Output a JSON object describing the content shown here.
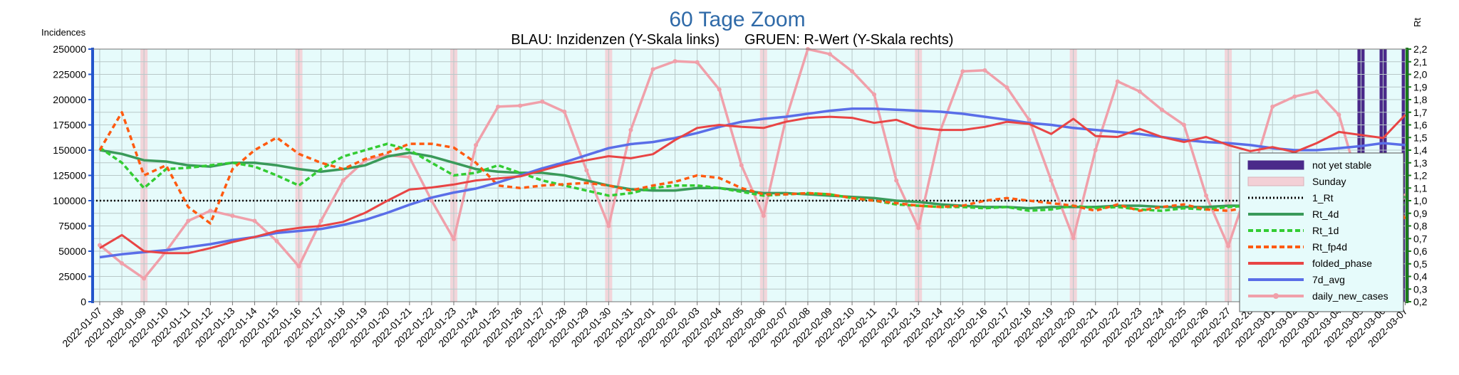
{
  "chart_data": {
    "type": "line",
    "title": "60 Tage Zoom",
    "subtitle_left": "BLAU: Inzidenzen (Y-Skala links)",
    "subtitle_right": "GRUEN: R-Wert (Y-Skala rechts)",
    "ylabel": "Incidences",
    "y2label": "Rt",
    "ylim": [
      0,
      250000
    ],
    "y2lim": [
      0.2,
      2.2
    ],
    "yticks": [
      "0",
      "25000",
      "50000",
      "75000",
      "100000",
      "125000",
      "150000",
      "175000",
      "200000",
      "225000",
      "250000"
    ],
    "y2ticks": [
      "0,2",
      "0,3",
      "0,4",
      "0,5",
      "0,6",
      "0,7",
      "0,8",
      "0,9",
      "1,0",
      "1,1",
      "1,2",
      "1,3",
      "1,4",
      "1,5",
      "1,6",
      "1,7",
      "1,8",
      "1,9",
      "2,0",
      "2,1",
      "2,2"
    ],
    "grid": true,
    "legend_position": "right",
    "x": [
      "2022-01-07",
      "2022-01-08",
      "2022-01-09",
      "2022-01-10",
      "2022-01-11",
      "2022-01-12",
      "2022-01-13",
      "2022-01-14",
      "2022-01-15",
      "2022-01-16",
      "2022-01-17",
      "2022-01-18",
      "2022-01-19",
      "2022-01-20",
      "2022-01-21",
      "2022-01-22",
      "2022-01-23",
      "2022-01-24",
      "2022-01-25",
      "2022-01-26",
      "2022-01-27",
      "2022-01-28",
      "2022-01-29",
      "2022-01-30",
      "2022-01-31",
      "2022-02-01",
      "2022-02-02",
      "2022-02-03",
      "2022-02-04",
      "2022-02-05",
      "2022-02-06",
      "2022-02-07",
      "2022-02-08",
      "2022-02-09",
      "2022-02-10",
      "2022-02-11",
      "2022-02-12",
      "2022-02-13",
      "2022-02-14",
      "2022-02-15",
      "2022-02-16",
      "2022-02-17",
      "2022-02-18",
      "2022-02-19",
      "2022-02-20",
      "2022-02-21",
      "2022-02-22",
      "2022-02-23",
      "2022-02-24",
      "2022-02-25",
      "2022-02-26",
      "2022-02-27",
      "2022-02-28",
      "2022-03-01",
      "2022-03-02",
      "2022-03-03",
      "2022-03-04",
      "2022-03-05",
      "2022-03-06",
      "2022-03-07"
    ],
    "sundays": [
      "2022-01-09",
      "2022-01-16",
      "2022-01-23",
      "2022-01-30",
      "2022-02-06",
      "2022-02-13",
      "2022-02-20",
      "2022-02-27",
      "2022-03-06"
    ],
    "not_yet_stable": [
      "2022-03-05",
      "2022-03-06",
      "2022-03-07"
    ],
    "reference_line": {
      "name": "1_Rt",
      "value": 1.0
    },
    "series": [
      {
        "name": "daily_new_cases",
        "axis": "left",
        "color": "#f0a0aa",
        "values": [
          56000,
          38000,
          23000,
          50000,
          80000,
          90000,
          85000,
          80000,
          60000,
          35000,
          80000,
          120000,
          140000,
          145000,
          143000,
          100000,
          62000,
          155000,
          193000,
          194000,
          198000,
          188000,
          130000,
          75000,
          170000,
          230000,
          238000,
          237000,
          210000,
          135000,
          85000,
          180000,
          250000,
          245000,
          228000,
          205000,
          120000,
          73000,
          170000,
          228000,
          229000,
          212000,
          180000,
          120000,
          63000,
          150000,
          218000,
          208000,
          190000,
          175000,
          105000,
          55000,
          120000,
          193000,
          203000,
          208000,
          185000,
          110000,
          72000,
          105000
        ]
      },
      {
        "name": "7d_avg",
        "axis": "left",
        "color": "#5a6ee8",
        "values": [
          44000,
          47000,
          49000,
          51000,
          54000,
          57000,
          61000,
          64000,
          68000,
          70000,
          72000,
          76000,
          81000,
          88000,
          96000,
          103000,
          108000,
          112000,
          118000,
          125000,
          132000,
          138000,
          145000,
          152000,
          156000,
          158000,
          162000,
          167000,
          173000,
          178000,
          181000,
          183000,
          186000,
          189000,
          191000,
          191000,
          190000,
          189000,
          188000,
          186000,
          183000,
          180000,
          177000,
          175000,
          172000,
          170000,
          168000,
          166000,
          163000,
          160000,
          158000,
          157000,
          155000,
          152000,
          150000,
          150000,
          152000,
          154000,
          157000,
          155000
        ]
      },
      {
        "name": "folded_phase",
        "axis": "left",
        "color": "#e84545",
        "values": [
          53000,
          66000,
          50000,
          48000,
          48000,
          53000,
          59000,
          64000,
          70000,
          73000,
          75000,
          79000,
          88000,
          100000,
          111000,
          113000,
          116000,
          120000,
          122000,
          124000,
          130000,
          136000,
          140000,
          144000,
          142000,
          146000,
          160000,
          172000,
          175000,
          173000,
          172000,
          178000,
          182000,
          183000,
          182000,
          177000,
          180000,
          172000,
          170000,
          170000,
          173000,
          178000,
          176000,
          166000,
          181000,
          164000,
          163000,
          171000,
          163000,
          158000,
          163000,
          155000,
          149000,
          153000,
          148000,
          157000,
          168000,
          165000,
          162000,
          185000
        ]
      },
      {
        "name": "Rt_4d",
        "axis": "right",
        "color": "#3a9a5a",
        "values": [
          1.4,
          1.37,
          1.32,
          1.31,
          1.28,
          1.27,
          1.3,
          1.3,
          1.28,
          1.25,
          1.23,
          1.25,
          1.28,
          1.35,
          1.38,
          1.35,
          1.3,
          1.25,
          1.23,
          1.22,
          1.22,
          1.2,
          1.16,
          1.12,
          1.09,
          1.08,
          1.08,
          1.1,
          1.1,
          1.08,
          1.06,
          1.06,
          1.05,
          1.04,
          1.03,
          1.02,
          1.0,
          0.99,
          0.97,
          0.96,
          0.95,
          0.95,
          0.94,
          0.95,
          0.95,
          0.95,
          0.96,
          0.96,
          0.95,
          0.95,
          0.95,
          0.96,
          0.96,
          0.94,
          0.94,
          0.95,
          0.97,
          0.99,
          1.01,
          1.03
        ]
      },
      {
        "name": "Rt_1d",
        "axis": "right",
        "color": "#33cc33",
        "values": [
          1.42,
          1.3,
          1.1,
          1.25,
          1.26,
          1.28,
          1.3,
          1.27,
          1.2,
          1.12,
          1.25,
          1.35,
          1.4,
          1.45,
          1.4,
          1.3,
          1.2,
          1.22,
          1.28,
          1.22,
          1.16,
          1.12,
          1.08,
          1.04,
          1.06,
          1.1,
          1.12,
          1.12,
          1.1,
          1.07,
          1.04,
          1.05,
          1.06,
          1.05,
          1.02,
          1.0,
          0.97,
          0.96,
          0.95,
          0.95,
          0.94,
          0.95,
          0.92,
          0.93,
          0.96,
          0.94,
          0.95,
          0.93,
          0.92,
          0.94,
          0.93,
          0.95,
          0.96,
          0.92,
          0.95,
          1.07,
          1.05,
          1.02,
          1.04,
          0.96
        ]
      },
      {
        "name": "Rt_fp4d",
        "axis": "right",
        "color": "#ff5a10",
        "values": [
          1.4,
          1.7,
          1.2,
          1.28,
          0.95,
          0.82,
          1.25,
          1.4,
          1.5,
          1.37,
          1.3,
          1.25,
          1.33,
          1.38,
          1.45,
          1.45,
          1.42,
          1.3,
          1.12,
          1.1,
          1.12,
          1.13,
          1.14,
          1.12,
          1.08,
          1.12,
          1.15,
          1.2,
          1.18,
          1.1,
          1.05,
          1.05,
          1.06,
          1.05,
          1.02,
          1.0,
          0.98,
          0.96,
          0.95,
          0.96,
          1.0,
          1.02,
          1.0,
          0.98,
          0.96,
          0.92,
          0.97,
          0.92,
          0.95,
          0.97,
          0.93,
          0.92,
          0.95,
          0.92,
          0.96,
          1.1,
          1.08,
          1.07,
          1.18,
          0.85
        ]
      }
    ]
  },
  "legend": [
    {
      "name": "not yet stable",
      "type": "box",
      "color": "#4a2a8a"
    },
    {
      "name": "Sunday",
      "type": "box",
      "color": "#f3d0d6"
    },
    {
      "name": "1_Rt",
      "type": "dotted",
      "color": "#000000"
    },
    {
      "name": "Rt_4d",
      "type": "line",
      "color": "#3a9a5a"
    },
    {
      "name": "Rt_1d",
      "type": "dashed",
      "color": "#33cc33"
    },
    {
      "name": "Rt_fp4d",
      "type": "dashed",
      "color": "#ff5a10"
    },
    {
      "name": "folded_phase",
      "type": "line",
      "color": "#e84545"
    },
    {
      "name": "7d_avg",
      "type": "line",
      "color": "#5a6ee8"
    },
    {
      "name": "daily_new_cases",
      "type": "marker",
      "color": "#f0a0aa"
    }
  ],
  "colors": {
    "plot_bg": "#e6fbfb",
    "left_axis": "#2255cc",
    "right_axis": "#1a7a1a",
    "title": "#2f6aa8"
  }
}
